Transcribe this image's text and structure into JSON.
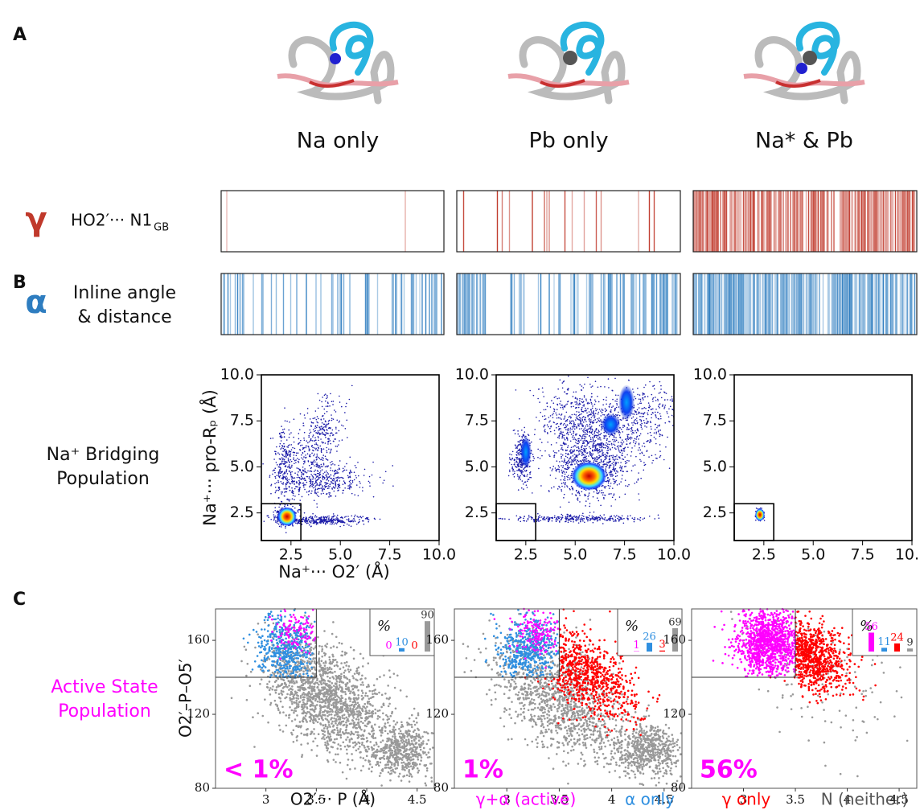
{
  "panel_labels": {
    "a": "A",
    "b": "B",
    "c": "C"
  },
  "panel_a": {
    "conditions": [
      "Na only",
      "Pb only",
      "Na* & Pb"
    ],
    "rows": [
      {
        "symbol": "γ",
        "label": "HO2′···  N1",
        "subscript": "GB",
        "color": "#c0392b"
      },
      {
        "symbol": "α",
        "label_lines": [
          "Inline angle",
          "& distance"
        ],
        "color": "#2e7dc0"
      }
    ]
  },
  "panel_b": {
    "row_label_lines": [
      "Na⁺ Bridging",
      "Population"
    ],
    "y_label": "Na⁺··· pro-Rₚ (Å)",
    "x_label": "Na⁺··· O2′ (Å)",
    "xlim": [
      1,
      10
    ],
    "ylim": [
      1,
      10
    ],
    "xticks": [
      2.5,
      {
        "value": 5,
        "label": "5.0"
      },
      7.5,
      {
        "value": 10,
        "label": "10.0"
      }
    ],
    "yticks": [
      2.5,
      {
        "value": 5,
        "label": "5.0"
      },
      7.5,
      {
        "value": 10,
        "label": "10.0"
      }
    ]
  },
  "panel_c": {
    "row_label_lines": [
      "Active State",
      "Population"
    ],
    "y_label": "O2′–P–O5′",
    "x_label": "O2′··· P (Å)",
    "xlim": [
      2.5,
      4.67
    ],
    "ylim": [
      80,
      177
    ],
    "xticks": [
      3,
      3.5,
      4,
      4.5
    ],
    "yticks": [
      80,
      120,
      160
    ],
    "inset_label": "%",
    "series": [
      {
        "name": "γ+α (active)",
        "color": "#ff00ff"
      },
      {
        "name": "α only",
        "color": "#2f8fe0"
      },
      {
        "name": "γ only",
        "color": "#ff0000"
      },
      {
        "name": "N (neither)",
        "color": "#999999"
      }
    ],
    "panels": [
      {
        "active_label": "< 1%",
        "inset_values": [
          0,
          10,
          0,
          90
        ]
      },
      {
        "active_label": "1%",
        "inset_values": [
          1,
          26,
          3,
          69
        ]
      },
      {
        "active_label": "56%",
        "inset_values": [
          56,
          11,
          24,
          9
        ]
      }
    ]
  }
}
